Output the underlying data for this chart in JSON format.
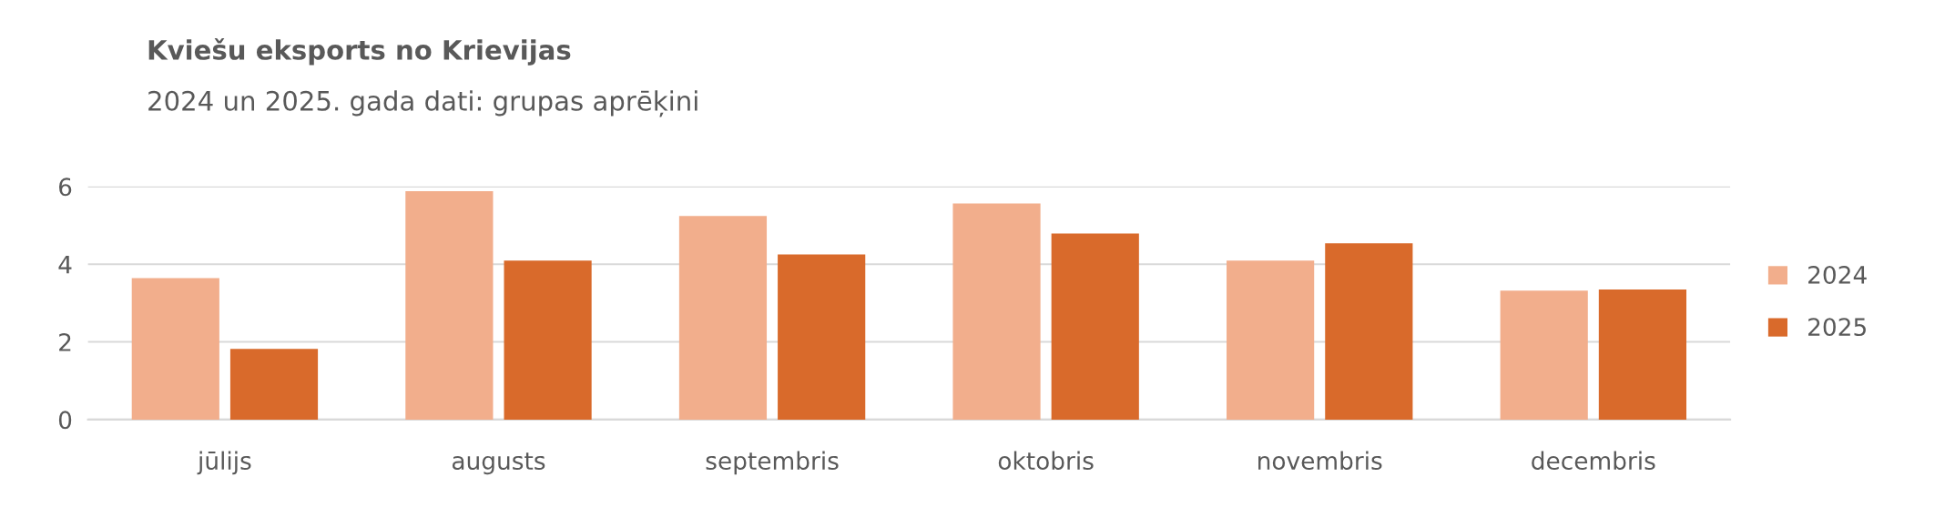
{
  "chart_data": {
    "type": "bar",
    "title": "Kviešu eksports no Krievijas",
    "subtitle": "2024 un 2025. gada dati: grupas aprēķini",
    "categories": [
      "jūlijs",
      "augusts",
      "septembris",
      "oktobris",
      "novembris",
      "decembris"
    ],
    "series": [
      {
        "name": "2024",
        "color": "#f2ae8c",
        "values": [
          3.64,
          5.88,
          5.24,
          5.56,
          4.09,
          3.32
        ]
      },
      {
        "name": "2025",
        "color": "#d96a2b",
        "values": [
          1.82,
          4.09,
          4.25,
          4.79,
          4.54,
          3.35
        ]
      }
    ],
    "ylim": [
      0,
      6
    ],
    "yticks": [
      0,
      2,
      4,
      6
    ],
    "grid": "y",
    "legend": "right"
  }
}
